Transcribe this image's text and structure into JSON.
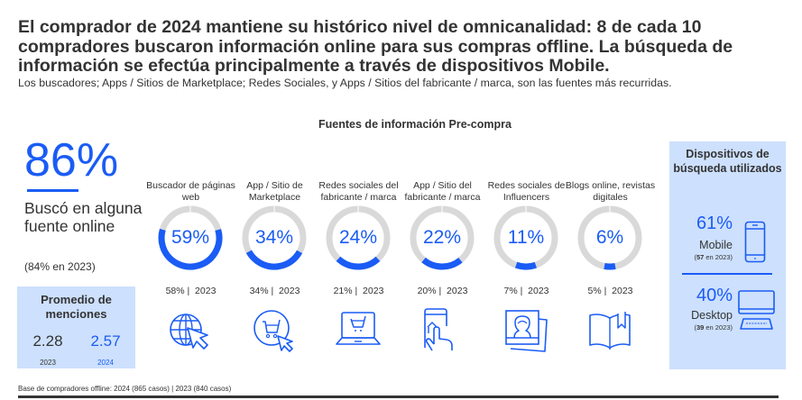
{
  "header": {
    "title": "El comprador de 2024 mantiene su histórico nivel de omnicanalidad: 8 de cada 10 compradores buscaron información online para sus compras offline. La búsqueda de información se efectúa principalmente a través de dispositivos Mobile.",
    "subtitle": "Los buscadores; Apps / Sitios de Marketplace; Redes Sociales, y Apps / Sitios del fabricante / marca, son las fuentes más recurridas."
  },
  "colors": {
    "accent": "#1a5cf5",
    "track": "#d9d9d9",
    "panel": "#cde0fd",
    "text": "#333333"
  },
  "summary": {
    "value": "86%",
    "label": "Buscó en alguna fuente online",
    "previous": "(84% en 2023)"
  },
  "average": {
    "title": "Promedio de menciones",
    "values": [
      {
        "year": "2023",
        "value": "2.28"
      },
      {
        "year": "2024",
        "value": "2.57"
      }
    ]
  },
  "chart_data": {
    "type": "pie",
    "title": "Fuentes de información Pre-compra",
    "categories": [
      "Buscador de páginas web",
      "App / Sitio de Marketplace",
      "Redes sociales del fabricante / marca",
      "App / Sitio del fabricante / marca",
      "Redes sociales de Influencers",
      "Blogs online, revistas digitales"
    ],
    "series": [
      {
        "name": "2024",
        "values": [
          59,
          34,
          24,
          22,
          11,
          6
        ]
      },
      {
        "name": "2023",
        "values": [
          58,
          34,
          21,
          20,
          7,
          5
        ]
      }
    ],
    "unit": "%"
  },
  "sources": {
    "title": "Fuentes de información Pre-compra",
    "items": [
      {
        "label": "Buscador de páginas web",
        "value": "59%",
        "pct": 59,
        "prev": "58% |  2023",
        "icon": "globe-cursor-icon"
      },
      {
        "label": "App / Sitio de Marketplace",
        "value": "34%",
        "pct": 34,
        "prev": "34% |  2023",
        "icon": "cart-cursor-icon"
      },
      {
        "label": "Redes sociales del fabricante / marca",
        "value": "24%",
        "pct": 24,
        "prev": "21% |  2023",
        "icon": "laptop-cart-icon"
      },
      {
        "label": "App / Sitio del fabricante / marca",
        "value": "22%",
        "pct": 22,
        "prev": "20% |  2023",
        "icon": "phone-touch-icon"
      },
      {
        "label": "Redes sociales de Influencers",
        "value": "11%",
        "pct": 11,
        "prev": "7% |  2023",
        "icon": "profile-photos-icon"
      },
      {
        "label": "Blogs online, revistas digitales",
        "value": "6%",
        "pct": 6,
        "prev": "5% |  2023",
        "icon": "open-book-icon"
      }
    ]
  },
  "devices": {
    "title": "Dispositivos de búsqueda utilizados",
    "items": [
      {
        "value": "61%",
        "label": "Mobile",
        "prev_num": "57",
        "prev_text": " en 2023)",
        "icon": "smartphone-icon"
      },
      {
        "value": "40%",
        "label": "Desktop",
        "prev_num": "39",
        "prev_text": " en 2023)",
        "icon": "desktop-icon"
      }
    ]
  },
  "footnote": "Base de compradores offline: 2024 (865 casos) | 2023 (840 casos)"
}
